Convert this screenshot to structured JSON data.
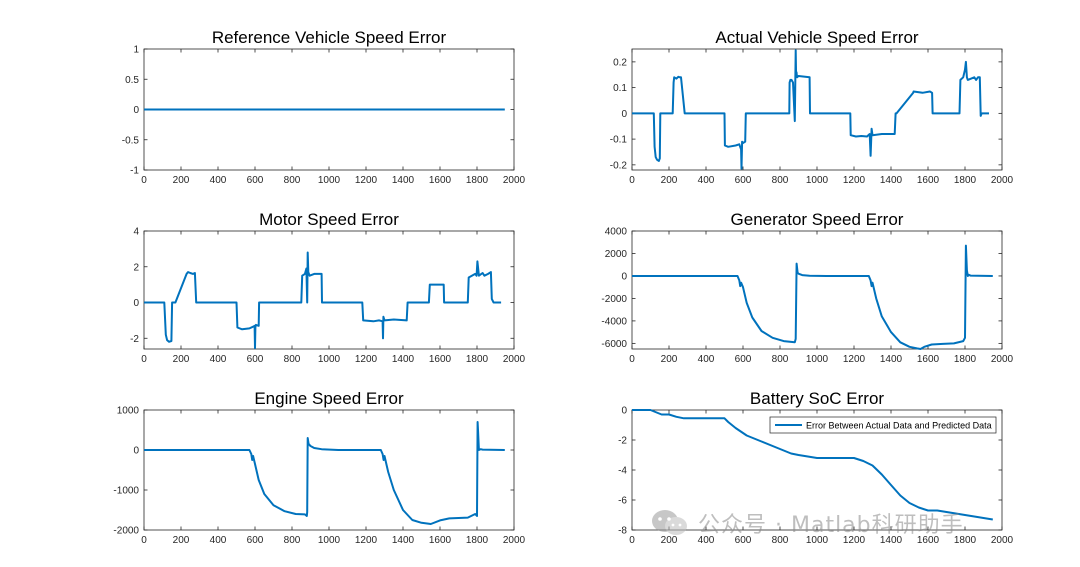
{
  "chart_data": [
    {
      "type": "line",
      "title": "Reference Vehicle Speed Error",
      "xlim": [
        0,
        2000
      ],
      "ylim": [
        -1,
        1
      ],
      "xticks": [
        "0",
        "200",
        "400",
        "600",
        "800",
        "1000",
        "1200",
        "1400",
        "1600",
        "1800",
        "2000"
      ],
      "yticks": [
        "-1",
        "-0.5",
        "0",
        "0.5",
        "1"
      ],
      "ytick_values": [
        -1,
        -0.5,
        0,
        0.5,
        1
      ],
      "grid": false,
      "series": [
        {
          "color": "#0072BD",
          "x": [
            0,
            1950
          ],
          "y": [
            0,
            0
          ]
        }
      ]
    },
    {
      "type": "line",
      "title": "Actual Vehicle Speed Error",
      "xlim": [
        0,
        2000
      ],
      "ylim": [
        -0.22,
        0.25
      ],
      "xticks": [
        "0",
        "200",
        "400",
        "600",
        "800",
        "1000",
        "1200",
        "1400",
        "1600",
        "1800",
        "2000"
      ],
      "yticks": [
        "-0.2",
        "-0.1",
        "0",
        "0.1",
        "0.2"
      ],
      "ytick_values": [
        -0.2,
        -0.1,
        0,
        0.1,
        0.2
      ],
      "grid": false,
      "series": [
        {
          "color": "#0072BD",
          "x": [
            0,
            118,
            122,
            128,
            135,
            145,
            150,
            153,
            220,
            225,
            228,
            240,
            250,
            258,
            265,
            285,
            500,
            502,
            520,
            560,
            580,
            590,
            592,
            595,
            600,
            612,
            615,
            850,
            852,
            856,
            862,
            870,
            880,
            885,
            887,
            889,
            892,
            895,
            900,
            960,
            962,
            1180,
            1182,
            1210,
            1240,
            1270,
            1285,
            1290,
            1295,
            1300,
            1350,
            1420,
            1425,
            1430,
            1520,
            1522,
            1570,
            1610,
            1622,
            1625,
            1770,
            1775,
            1790,
            1800,
            1805,
            1810,
            1815,
            1850,
            1860,
            1870,
            1880,
            1885,
            1890,
            1930
          ],
          "y": [
            0,
            0,
            -0.13,
            -0.17,
            -0.18,
            -0.185,
            -0.175,
            0,
            0,
            0.12,
            0.14,
            0.135,
            0.142,
            0.14,
            0.14,
            0,
            0,
            -0.125,
            -0.13,
            -0.125,
            -0.12,
            -0.14,
            -0.215,
            -0.11,
            -0.115,
            -0.11,
            0,
            0,
            0.12,
            0.13,
            0.13,
            0.12,
            -0.03,
            0.245,
            0.145,
            0.16,
            0.14,
            0.142,
            0.145,
            0.14,
            0,
            0,
            -0.085,
            -0.09,
            -0.088,
            -0.09,
            -0.08,
            -0.165,
            -0.06,
            -0.085,
            -0.08,
            -0.08,
            0,
            0,
            0.08,
            0.085,
            0.08,
            0.085,
            0.08,
            0,
            0,
            0.13,
            0.14,
            0.17,
            0.2,
            0.14,
            0.13,
            0.14,
            0.13,
            0.14,
            0.14,
            -0.01,
            0,
            0
          ]
        }
      ]
    },
    {
      "type": "line",
      "title": "Motor Speed Error",
      "xlim": [
        0,
        2000
      ],
      "ylim": [
        -2.6,
        4
      ],
      "xticks": [
        "0",
        "200",
        "400",
        "600",
        "800",
        "1000",
        "1200",
        "1400",
        "1600",
        "1800",
        "2000"
      ],
      "yticks": [
        "-2",
        "0",
        "2",
        "4"
      ],
      "ytick_values": [
        -2,
        0,
        2,
        4
      ],
      "grid": false,
      "series": [
        {
          "color": "#0072BD",
          "x": [
            0,
            110,
            118,
            125,
            135,
            148,
            152,
            165,
            170,
            230,
            238,
            250,
            265,
            275,
            282,
            500,
            505,
            530,
            570,
            590,
            598,
            600,
            602,
            605,
            620,
            622,
            850,
            855,
            870,
            878,
            882,
            885,
            888,
            895,
            920,
            960,
            962,
            1180,
            1185,
            1240,
            1270,
            1290,
            1292,
            1294,
            1300,
            1350,
            1420,
            1425,
            1540,
            1545,
            1620,
            1622,
            1750,
            1755,
            1790,
            1798,
            1802,
            1810,
            1830,
            1840,
            1860,
            1875,
            1880,
            1890,
            1930
          ],
          "y": [
            0,
            0,
            -1.8,
            -2.1,
            -2.2,
            -2.15,
            0,
            0,
            0,
            1.6,
            1.7,
            1.65,
            1.6,
            1.65,
            0,
            0,
            -1.4,
            -1.5,
            -1.45,
            -1.35,
            -1.3,
            -2.55,
            -1.35,
            -1.25,
            -1.3,
            0,
            0,
            1.5,
            1.6,
            1.9,
            0,
            2.8,
            1.7,
            1.5,
            1.6,
            1.6,
            0,
            0,
            -1,
            -1.05,
            -1.0,
            -1.05,
            -2.0,
            -0.8,
            -1.0,
            -0.95,
            -1.0,
            0,
            0,
            1,
            1,
            0,
            0,
            1.4,
            1.6,
            1.5,
            2.3,
            1.5,
            1.65,
            1.5,
            1.6,
            1.7,
            0.2,
            0,
            0
          ]
        }
      ]
    },
    {
      "type": "line",
      "title": "Generator Speed Error",
      "xlim": [
        0,
        2000
      ],
      "ylim": [
        -6500,
        4000
      ],
      "xticks": [
        "0",
        "200",
        "400",
        "600",
        "800",
        "1000",
        "1200",
        "1400",
        "1600",
        "1800",
        "2000"
      ],
      "yticks": [
        "-6000",
        "-4000",
        "-2000",
        "0",
        "2000",
        "4000"
      ],
      "ytick_values": [
        -6000,
        -4000,
        -2000,
        0,
        2000,
        4000
      ],
      "grid": false,
      "series": [
        {
          "color": "#0072BD",
          "x": [
            0,
            570,
            580,
            585,
            590,
            600,
            620,
            650,
            700,
            760,
            820,
            880,
            885,
            890,
            895,
            900,
            920,
            960,
            1050,
            1200,
            1280,
            1290,
            1295,
            1300,
            1320,
            1350,
            1400,
            1450,
            1500,
            1540,
            1560,
            1580,
            1620,
            1680,
            1740,
            1790,
            1800,
            1805,
            1810,
            1815,
            1820,
            1830,
            1950
          ],
          "y": [
            0,
            0,
            -400,
            -900,
            -600,
            -1000,
            -2400,
            -3700,
            -4900,
            -5500,
            -5800,
            -5900,
            -5600,
            1100,
            300,
            200,
            80,
            20,
            0,
            0,
            0,
            -400,
            -900,
            -600,
            -2000,
            -3600,
            -5000,
            -5900,
            -6300,
            -6450,
            -6500,
            -6300,
            -6100,
            -6050,
            -6000,
            -5800,
            -5500,
            2700,
            500,
            0,
            100,
            30,
            0
          ]
        }
      ]
    },
    {
      "type": "line",
      "title": "Engine Speed Error",
      "xlim": [
        0,
        2000
      ],
      "ylim": [
        -2000,
        1000
      ],
      "xticks": [
        "0",
        "200",
        "400",
        "600",
        "800",
        "1000",
        "1200",
        "1400",
        "1600",
        "1800",
        "2000"
      ],
      "yticks": [
        "-2000",
        "-1000",
        "0",
        "1000"
      ],
      "ytick_values": [
        -2000,
        -1000,
        0,
        1000
      ],
      "grid": false,
      "series": [
        {
          "color": "#0072BD",
          "x": [
            0,
            570,
            580,
            585,
            590,
            600,
            620,
            650,
            700,
            760,
            820,
            870,
            880,
            882,
            885,
            890,
            900,
            920,
            960,
            1050,
            1200,
            1280,
            1290,
            1295,
            1300,
            1320,
            1350,
            1400,
            1450,
            1500,
            1550,
            1600,
            1650,
            1700,
            1750,
            1790,
            1800,
            1803,
            1806,
            1810,
            1820,
            1830,
            1950
          ],
          "y": [
            0,
            0,
            -100,
            -250,
            -150,
            -350,
            -750,
            -1100,
            -1380,
            -1530,
            -1600,
            -1610,
            -1650,
            -1550,
            300,
            150,
            100,
            50,
            20,
            0,
            0,
            0,
            -100,
            -250,
            -150,
            -550,
            -1000,
            -1500,
            -1750,
            -1820,
            -1850,
            -1760,
            -1710,
            -1700,
            -1690,
            -1600,
            -1650,
            700,
            450,
            0,
            20,
            10,
            0
          ]
        }
      ]
    },
    {
      "type": "line",
      "title": "Battery SoC Error",
      "xlim": [
        0,
        2000
      ],
      "ylim": [
        -8,
        0
      ],
      "xticks": [
        "0",
        "200",
        "400",
        "600",
        "800",
        "1000",
        "1200",
        "1400",
        "1600",
        "1800",
        "2000"
      ],
      "yticks": [
        "-8",
        "-6",
        "-4",
        "-2",
        "0"
      ],
      "ytick_values": [
        -8,
        -6,
        -4,
        -2,
        0
      ],
      "grid": false,
      "legend": {
        "position": "top-right",
        "entries": [
          "Error Between Actual Data and Predicted Data"
        ]
      },
      "series": [
        {
          "name": "Error Between Actual Data and Predicted Data",
          "color": "#0072BD",
          "x": [
            0,
            100,
            120,
            160,
            200,
            240,
            280,
            300,
            500,
            520,
            560,
            620,
            700,
            780,
            860,
            900,
            950,
            1000,
            1100,
            1200,
            1250,
            1300,
            1350,
            1400,
            1450,
            1500,
            1550,
            1600,
            1650,
            1700,
            1750,
            1800,
            1850,
            1900,
            1950
          ],
          "y": [
            0,
            0,
            -0.1,
            -0.3,
            -0.3,
            -0.45,
            -0.55,
            -0.55,
            -0.55,
            -0.8,
            -1.2,
            -1.7,
            -2.1,
            -2.5,
            -2.9,
            -3.0,
            -3.1,
            -3.2,
            -3.2,
            -3.2,
            -3.4,
            -3.7,
            -4.3,
            -5.0,
            -5.7,
            -6.2,
            -6.5,
            -6.7,
            -6.7,
            -6.8,
            -6.9,
            -7.0,
            -7.1,
            -7.2,
            -7.3
          ]
        }
      ]
    }
  ],
  "watermark": {
    "icon": "wechat-icon",
    "text": "公众号 · Matlab科研助手"
  }
}
